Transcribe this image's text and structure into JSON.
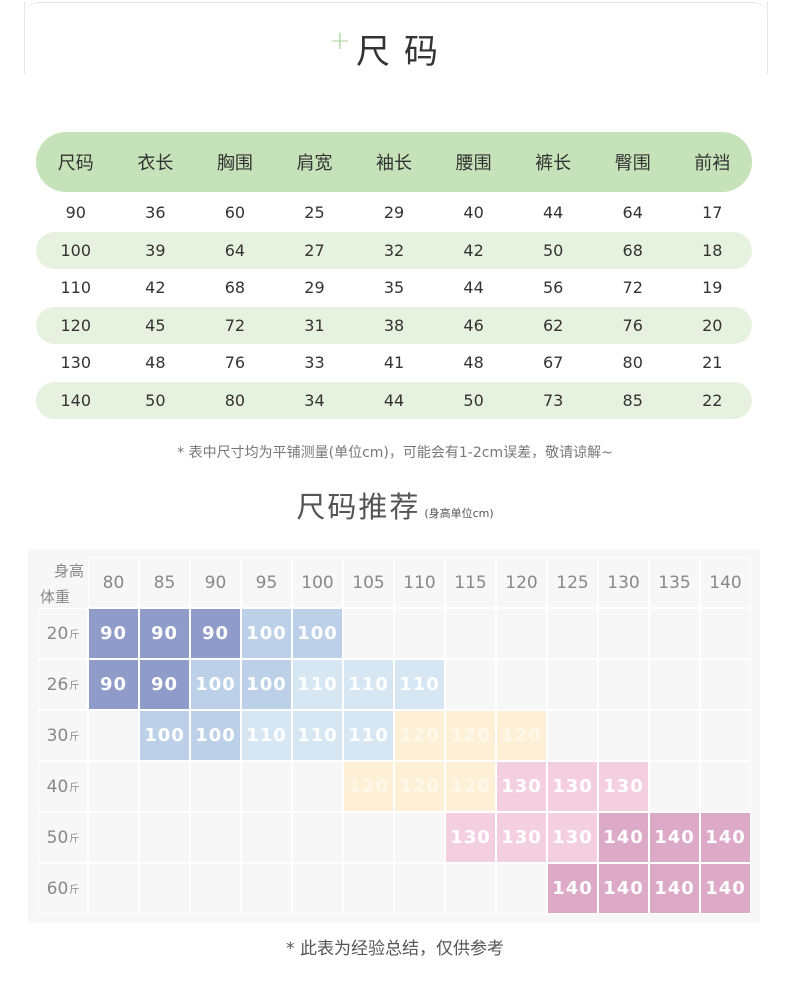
{
  "header": {
    "plus": "+",
    "title": "尺码"
  },
  "size_table": {
    "headers": [
      "尺码",
      "衣长",
      "胸围",
      "肩宽",
      "袖长",
      "腰围",
      "裤长",
      "臀围",
      "前裆"
    ],
    "rows": [
      [
        "90",
        "36",
        "60",
        "25",
        "29",
        "40",
        "44",
        "64",
        "17"
      ],
      [
        "100",
        "39",
        "64",
        "27",
        "32",
        "42",
        "50",
        "68",
        "18"
      ],
      [
        "110",
        "42",
        "68",
        "29",
        "35",
        "44",
        "56",
        "72",
        "19"
      ],
      [
        "120",
        "45",
        "72",
        "31",
        "38",
        "46",
        "62",
        "76",
        "20"
      ],
      [
        "130",
        "48",
        "76",
        "33",
        "41",
        "48",
        "67",
        "80",
        "21"
      ],
      [
        "140",
        "50",
        "80",
        "34",
        "44",
        "50",
        "73",
        "85",
        "22"
      ]
    ]
  },
  "note_measure": "* 表中尺寸均为平铺测量(单位cm)，可能会有1-2cm误差，敬请谅解~",
  "recommend": {
    "title": "尺码推荐",
    "subtitle": "(身高单位cm)",
    "corner_top": "身高",
    "corner_bottom": "体重",
    "heights": [
      "80",
      "85",
      "90",
      "95",
      "100",
      "105",
      "110",
      "115",
      "120",
      "125",
      "130",
      "135",
      "140"
    ],
    "weight_unit": "斤",
    "weights": [
      "20",
      "26",
      "30",
      "40",
      "50",
      "60"
    ],
    "colors": {
      "90": "#8f9bc9",
      "100": "#bcd1e8",
      "110": "#d6e6f3",
      "120": "#fdf0d6",
      "130": "#f4cfe0",
      "140": "#dca9c6"
    },
    "text_colors": {
      "120": "#fff8ea"
    },
    "cells": [
      [
        "90",
        "90",
        "90",
        "100",
        "100",
        "",
        "",
        "",
        "",
        "",
        "",
        "",
        ""
      ],
      [
        "90",
        "90",
        "100",
        "100",
        "110",
        "110",
        "110",
        "",
        "",
        "",
        "",
        "",
        ""
      ],
      [
        "",
        "100",
        "100",
        "110",
        "110",
        "110",
        "120",
        "120",
        "120",
        "",
        "",
        "",
        ""
      ],
      [
        "",
        "",
        "",
        "",
        "",
        "120",
        "120",
        "120",
        "130",
        "130",
        "130",
        "",
        ""
      ],
      [
        "",
        "",
        "",
        "",
        "",
        "",
        "",
        "130",
        "130",
        "130",
        "140",
        "140",
        "140"
      ],
      [
        "",
        "",
        "",
        "",
        "",
        "",
        "",
        "",
        "",
        "140",
        "140",
        "140",
        "140"
      ]
    ]
  },
  "note_summary": "* 此表为经验总结，仅供参考"
}
